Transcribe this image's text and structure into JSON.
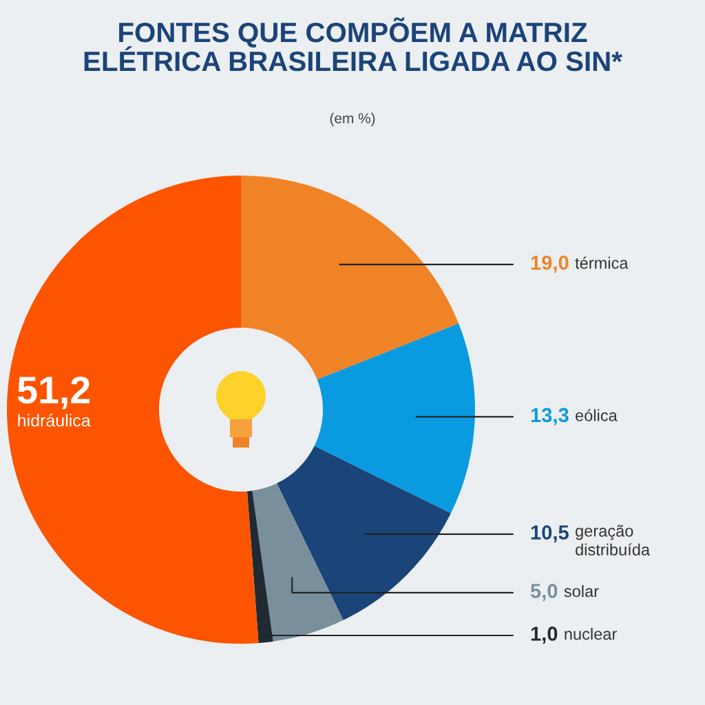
{
  "chart_data": {
    "type": "donut",
    "title": "FONTES QUE COMPÕEM A MATRIZ\nELÉTRICA BRASILEIRA LIGADA AO SIN*",
    "subtitle": "(em %)",
    "categories": [
      "térmica",
      "eólica",
      "geração\ndistribuída",
      "solar",
      "nuclear",
      "hidráulica"
    ],
    "values": [
      19.0,
      13.3,
      10.5,
      5.0,
      1.0,
      51.2
    ],
    "value_labels": [
      "19,0",
      "13,3",
      "10,5",
      "5,0",
      "1,0",
      "51,2"
    ],
    "colors": [
      "#f08326",
      "#0a9ae0",
      "#1b4479",
      "#7a8f9c",
      "#1f2a33",
      "#fc5400"
    ]
  }
}
